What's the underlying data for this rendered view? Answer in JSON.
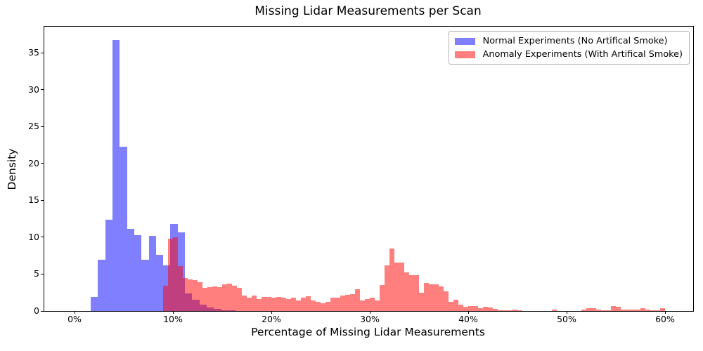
{
  "chart_data": {
    "type": "bar",
    "subtype": "overlapping-histograms",
    "title": "Missing Lidar Measurements per Scan",
    "xlabel": "Percentage of Missing Lidar Measurements",
    "ylabel": "Density",
    "grid": false,
    "legend_position": "upper right",
    "x_tick_values": [
      0,
      10,
      20,
      30,
      40,
      50,
      60
    ],
    "x_tick_labels": [
      "0%",
      "10%",
      "20%",
      "30%",
      "40%",
      "50%",
      "60%"
    ],
    "y_tick_values": [
      0,
      5,
      10,
      15,
      20,
      25,
      30,
      35
    ],
    "xlim_pct": [
      -3.07,
      62.86
    ],
    "ylim": [
      0,
      38.5
    ],
    "series": [
      {
        "name": "Normal Experiments (No Artifical Smoke)",
        "color": "#0000ff",
        "alpha": 0.5,
        "bin_width_pct": 0.736,
        "bins": [
          [
            1.65,
            1.9
          ],
          [
            2.39,
            6.9
          ],
          [
            3.12,
            12.4
          ],
          [
            3.86,
            36.7
          ],
          [
            4.59,
            22.3
          ],
          [
            5.33,
            11.1
          ],
          [
            6.06,
            10.3
          ],
          [
            6.8,
            6.9
          ],
          [
            7.54,
            10.15
          ],
          [
            8.27,
            7.6
          ],
          [
            9.01,
            6.2
          ],
          [
            9.74,
            11.8
          ],
          [
            10.48,
            10.66
          ],
          [
            11.21,
            2.4
          ],
          [
            11.95,
            1.5
          ],
          [
            12.69,
            0.9
          ],
          [
            13.42,
            0.45
          ],
          [
            14.16,
            0.25
          ],
          [
            14.89,
            0.12
          ],
          [
            15.63,
            0.06
          ]
        ]
      },
      {
        "name": "Anomaly Experiments (With Artifical Smoke)",
        "color": "#ff0000",
        "alpha": 0.5,
        "bin_width_pct": 0.5,
        "bins": [
          [
            9.0,
            3.4
          ],
          [
            9.5,
            9.8
          ],
          [
            10.0,
            10.0
          ],
          [
            10.5,
            6.05
          ],
          [
            11.0,
            4.47
          ],
          [
            11.5,
            4.3
          ],
          [
            12.0,
            4.15
          ],
          [
            12.5,
            3.9
          ],
          [
            13.0,
            3.1
          ],
          [
            13.5,
            3.2
          ],
          [
            14.0,
            3.36
          ],
          [
            14.5,
            3.2
          ],
          [
            15.0,
            3.6
          ],
          [
            15.5,
            3.67
          ],
          [
            16.0,
            3.4
          ],
          [
            16.5,
            3.1
          ],
          [
            17.0,
            2.1
          ],
          [
            17.5,
            1.84
          ],
          [
            18.0,
            2.1
          ],
          [
            18.5,
            1.6
          ],
          [
            19.0,
            1.93
          ],
          [
            19.5,
            1.93
          ],
          [
            20.0,
            1.77
          ],
          [
            20.5,
            1.93
          ],
          [
            21.0,
            1.84
          ],
          [
            21.5,
            1.6
          ],
          [
            22.0,
            1.77
          ],
          [
            22.5,
            1.46
          ],
          [
            23.0,
            1.84
          ],
          [
            23.5,
            1.95
          ],
          [
            24.0,
            1.46
          ],
          [
            24.5,
            1.2
          ],
          [
            25.0,
            1.0
          ],
          [
            25.5,
            1.2
          ],
          [
            26.0,
            1.77
          ],
          [
            26.5,
            1.84
          ],
          [
            27.0,
            2.1
          ],
          [
            27.5,
            2.15
          ],
          [
            28.0,
            2.25
          ],
          [
            28.5,
            2.98
          ],
          [
            29.0,
            1.46
          ],
          [
            29.5,
            1.6
          ],
          [
            30.0,
            1.84
          ],
          [
            30.5,
            1.46
          ],
          [
            31.0,
            3.5
          ],
          [
            31.5,
            6.15
          ],
          [
            32.0,
            8.43
          ],
          [
            32.5,
            6.6
          ],
          [
            33.0,
            6.6
          ],
          [
            33.5,
            5.26
          ],
          [
            34.0,
            4.88
          ],
          [
            34.5,
            4.88
          ],
          [
            35.0,
            2.47
          ],
          [
            35.5,
            3.83
          ],
          [
            36.0,
            3.6
          ],
          [
            36.5,
            3.6
          ],
          [
            37.0,
            3.36
          ],
          [
            37.5,
            2.66
          ],
          [
            38.0,
            1.2
          ],
          [
            38.5,
            1.52
          ],
          [
            39.0,
            0.89
          ],
          [
            39.5,
            0.55
          ],
          [
            40.0,
            0.66
          ],
          [
            40.5,
            0.66
          ],
          [
            41.0,
            0.35
          ],
          [
            41.5,
            0.57
          ],
          [
            42.0,
            0.44
          ],
          [
            42.5,
            0.25
          ],
          [
            43.0,
            0.13
          ],
          [
            43.5,
            0.1
          ],
          [
            44.0,
            0.05
          ],
          [
            44.5,
            0.19
          ],
          [
            45.0,
            0.05
          ],
          [
            48.5,
            0.19
          ],
          [
            51.5,
            0.2
          ],
          [
            52.0,
            0.35
          ],
          [
            52.5,
            0.35
          ],
          [
            53.0,
            0.2
          ],
          [
            53.5,
            0.1
          ],
          [
            54.0,
            0.1
          ],
          [
            54.5,
            0.63
          ],
          [
            55.0,
            0.55
          ],
          [
            55.5,
            0.15
          ],
          [
            56.0,
            0.2
          ],
          [
            56.5,
            0.22
          ],
          [
            57.0,
            0.22
          ],
          [
            57.5,
            0.35
          ],
          [
            58.0,
            0.22
          ],
          [
            58.5,
            0.05
          ],
          [
            59.0,
            0.1
          ],
          [
            59.5,
            0.35
          ]
        ]
      }
    ]
  }
}
